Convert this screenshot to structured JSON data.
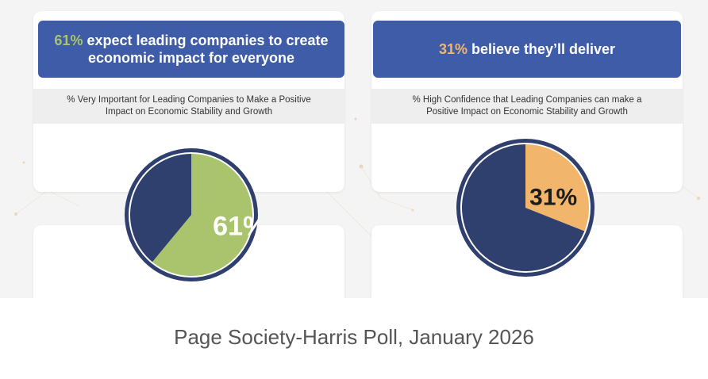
{
  "chart_data": [
    {
      "type": "pie",
      "header_pct": "61%",
      "header_text": " expect leading companies to create economic impact for everyone",
      "title": "% Very Important for Leading Companies to Make a Positive Impact on Economic Stability and Growth",
      "values": [
        61,
        39
      ],
      "data_label": "61%",
      "colors": [
        "#a9c46d",
        "#2f3f6e"
      ]
    },
    {
      "type": "pie",
      "header_pct": "31%",
      "header_text": " believe they’ll deliver",
      "title": "% High Confidence that Leading Companies can make a Positive Impact on Economic Stability and Growth",
      "values": [
        31,
        69
      ],
      "data_label": "31%",
      "colors": [
        "#f1b66b",
        "#2f3f6e"
      ]
    }
  ],
  "colors": {
    "header_bg": "#3f5ca8",
    "ring": "#2f3f6e",
    "accent_green": "#a9c46d",
    "accent_orange": "#f1b66b"
  },
  "caption": "Page Society-Harris Poll, January 2026"
}
